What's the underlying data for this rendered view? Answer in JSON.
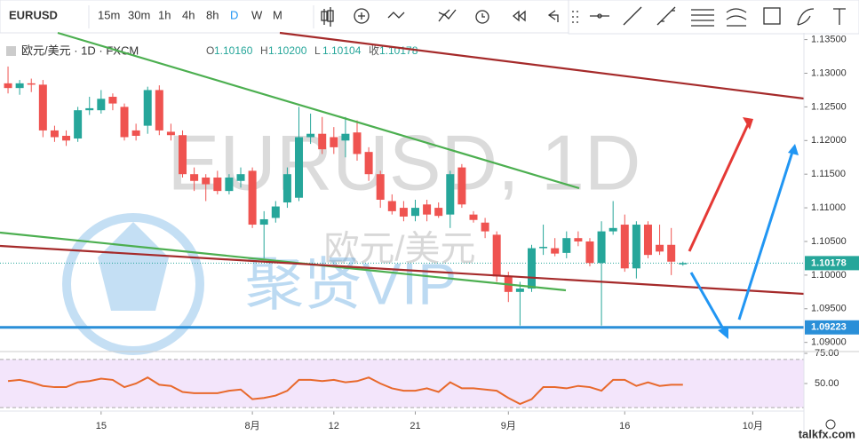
{
  "toolbar": {
    "symbol": "EURUSD",
    "intervals": [
      "15m",
      "30m",
      "1h",
      "4h",
      "8h",
      "D",
      "W",
      "M"
    ]
  },
  "legend": {
    "title": "欧元/美元 · 1D · FXCM",
    "ohlc": [
      {
        "label": "O",
        "value": "1.10160"
      },
      {
        "label": "H",
        "value": "1.10200"
      },
      {
        "label": "L",
        "value": "1.10104"
      },
      {
        "label": "收",
        "value": "1.10178"
      }
    ]
  },
  "watermark": {
    "main": "EURUSD, 1D",
    "sub": "欧元/美元",
    "brand": "聚贤VIP"
  },
  "site": "talkfx.com",
  "chart_data": [
    {
      "type": "candlestick",
      "up_color": "#26a69a",
      "down_color": "#ef5350",
      "x": [
        0,
        1,
        2,
        3,
        4,
        5,
        6,
        7,
        8,
        9,
        10,
        11,
        12,
        13,
        14,
        15,
        16,
        17,
        18,
        19,
        20,
        21,
        22,
        23,
        24,
        25,
        26,
        27,
        28,
        29,
        30,
        31,
        32,
        33,
        34,
        35,
        36,
        37,
        38,
        39,
        40,
        41,
        42,
        43,
        44,
        45,
        46,
        47,
        48,
        49,
        50,
        51,
        52,
        53,
        54,
        55,
        56,
        57,
        58
      ],
      "open": [
        1.1285,
        1.1278,
        1.1285,
        1.1283,
        1.1215,
        1.1207,
        1.1203,
        1.1245,
        1.1245,
        1.1265,
        1.125,
        1.1215,
        1.1222,
        1.1275,
        1.1213,
        1.1208,
        1.115,
        1.1145,
        1.1145,
        1.1125,
        1.114,
        1.1155,
        1.1075,
        1.1085,
        1.1108,
        1.1115,
        1.1205,
        1.121,
        1.1205,
        1.12,
        1.1212,
        1.1183,
        1.115,
        1.111,
        1.11,
        1.1088,
        1.1105,
        1.11,
        1.109,
        1.116,
        1.109,
        1.1078,
        1.106,
        1.0998,
        1.0975,
        1.098,
        1.104,
        1.104,
        1.1033,
        1.1055,
        1.105,
        1.1018,
        1.1065,
        1.1075,
        1.101,
        1.1075,
        1.1045,
        1.1045,
        1.1016
      ],
      "high": [
        1.131,
        1.129,
        1.1292,
        1.129,
        1.1222,
        1.1215,
        1.125,
        1.1265,
        1.1275,
        1.127,
        1.1255,
        1.1225,
        1.128,
        1.1282,
        1.1225,
        1.1215,
        1.116,
        1.115,
        1.1155,
        1.115,
        1.116,
        1.116,
        1.1095,
        1.111,
        1.116,
        1.125,
        1.124,
        1.1235,
        1.122,
        1.1235,
        1.123,
        1.119,
        1.1155,
        1.112,
        1.111,
        1.1112,
        1.1112,
        1.1108,
        1.1155,
        1.1165,
        1.1095,
        1.1085,
        1.1065,
        1.1005,
        1.099,
        1.1045,
        1.1075,
        1.1055,
        1.1065,
        1.1065,
        1.1055,
        1.108,
        1.111,
        1.109,
        1.108,
        1.108,
        1.1075,
        1.107,
        1.102
      ],
      "low": [
        1.127,
        1.1268,
        1.1272,
        1.1205,
        1.1198,
        1.1192,
        1.1198,
        1.1238,
        1.124,
        1.1245,
        1.12,
        1.12,
        1.121,
        1.1208,
        1.12,
        1.1145,
        1.1125,
        1.111,
        1.112,
        1.112,
        1.113,
        1.107,
        1.1025,
        1.1078,
        1.11,
        1.111,
        1.1195,
        1.118,
        1.118,
        1.1175,
        1.117,
        1.114,
        1.11,
        1.109,
        1.108,
        1.108,
        1.108,
        1.1085,
        1.107,
        1.11,
        1.1078,
        1.1055,
        1.099,
        1.096,
        1.0925,
        1.0975,
        1.103,
        1.1028,
        1.1025,
        1.1043,
        1.1013,
        1.0925,
        1.106,
        1.1005,
        1.0995,
        1.1025,
        1.103,
        1.1,
        1.1014
      ],
      "close": [
        1.1278,
        1.1285,
        1.1283,
        1.1215,
        1.1205,
        1.12,
        1.1245,
        1.1248,
        1.1262,
        1.1255,
        1.1205,
        1.1207,
        1.1275,
        1.1215,
        1.1208,
        1.115,
        1.114,
        1.1135,
        1.1125,
        1.1145,
        1.115,
        1.1075,
        1.1083,
        1.1102,
        1.115,
        1.1205,
        1.121,
        1.1187,
        1.119,
        1.121,
        1.118,
        1.115,
        1.1112,
        1.1095,
        1.1087,
        1.11,
        1.109,
        1.1088,
        1.115,
        1.1105,
        1.1082,
        1.1065,
        1.0998,
        1.0975,
        1.098,
        1.104,
        1.1042,
        1.1032,
        1.1055,
        1.105,
        1.1018,
        1.1065,
        1.107,
        1.101,
        1.1075,
        1.103,
        1.1035,
        1.102,
        1.1018
      ],
      "xlim": [
        -0.69,
        68.4
      ],
      "xticks": [
        {
          "value": 8,
          "label": "15"
        },
        {
          "value": 21,
          "label": "8月"
        },
        {
          "value": 28,
          "label": "12"
        },
        {
          "value": 35,
          "label": "21"
        },
        {
          "value": 43,
          "label": "9月"
        },
        {
          "value": 53,
          "label": "16"
        },
        {
          "value": 64,
          "label": "10月"
        }
      ],
      "ylim": [
        1.08877,
        1.13587
      ],
      "yticks": [
        {
          "value": 1.135,
          "label": "1.13500"
        },
        {
          "value": 1.13,
          "label": "1.13000"
        },
        {
          "value": 1.125,
          "label": "1.12500"
        },
        {
          "value": 1.12,
          "label": "1.12000"
        },
        {
          "value": 1.115,
          "label": "1.11500"
        },
        {
          "value": 1.11,
          "label": "1.11000"
        },
        {
          "value": 1.105,
          "label": "1.10500"
        },
        {
          "value": 1.1,
          "label": "1.10000"
        },
        {
          "value": 1.095,
          "label": "1.09500"
        },
        {
          "value": 1.09,
          "label": "1.09000"
        }
      ],
      "price_lines": [
        {
          "value": 1.10178,
          "label": "1.10178",
          "color": "#26a69a"
        },
        {
          "value": 1.09223,
          "label": "1.09223",
          "color": "#2a8fd8"
        }
      ]
    },
    {
      "type": "line",
      "color": "#e8692c",
      "values": [
        52,
        53,
        51,
        48,
        47,
        47,
        51,
        52,
        54,
        53,
        47,
        50,
        55,
        49,
        48,
        43,
        42,
        42,
        42,
        44,
        45,
        37,
        38,
        40,
        44,
        53,
        53,
        52,
        53,
        51,
        52,
        55,
        50,
        46,
        44,
        44,
        46,
        43,
        51,
        46,
        46,
        45,
        44,
        38,
        33,
        37,
        47,
        47,
        46,
        48,
        47,
        44,
        53,
        53,
        48,
        51,
        48,
        49,
        49
      ],
      "ylim": [
        27.9,
        76.5
      ],
      "yticks": [
        {
          "value": 75,
          "label": "75.00"
        },
        {
          "value": 50,
          "label": "50.00"
        }
      ],
      "band": [
        70,
        30
      ]
    }
  ]
}
